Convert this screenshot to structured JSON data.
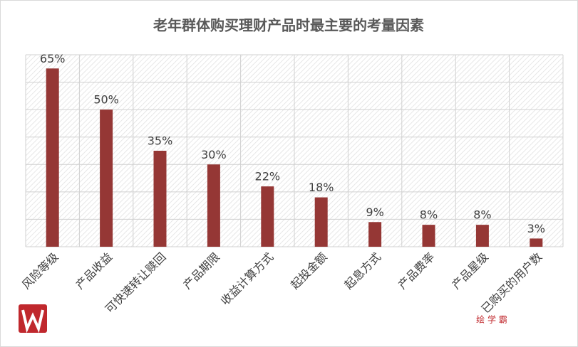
{
  "chart_data": {
    "type": "bar",
    "title": "老年群体购买理财产品时最主要的考量因素",
    "categories": [
      "风险等级",
      "产品收益",
      "可快速转让赎回",
      "产品期限",
      "收益计算方式",
      "起投金额",
      "起息方式",
      "产品费率",
      "产品星级",
      "已购买的用户数"
    ],
    "values": [
      65,
      50,
      35,
      30,
      22,
      18,
      9,
      8,
      8,
      3
    ],
    "value_labels": [
      "65%",
      "50%",
      "35%",
      "30%",
      "22%",
      "18%",
      "9%",
      "8%",
      "8%",
      "3%"
    ],
    "color": "#953735",
    "ylim": [
      0,
      70
    ],
    "yticks": [
      0,
      10,
      20,
      30,
      40,
      50,
      60,
      70
    ],
    "grid": true,
    "watermark": "绘 学 霸"
  }
}
